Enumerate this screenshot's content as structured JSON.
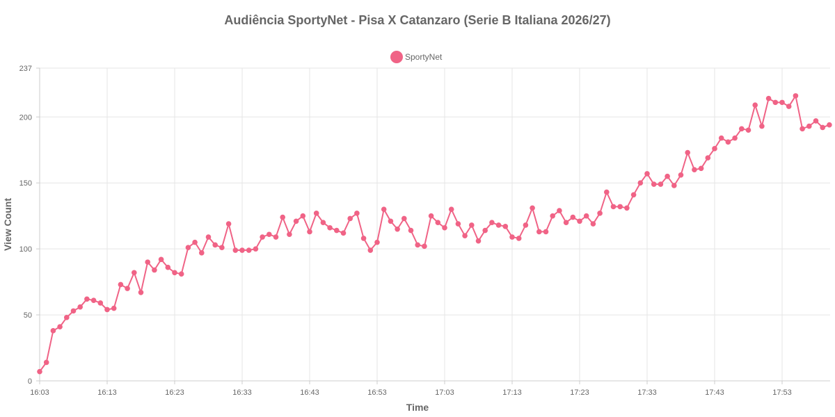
{
  "chart_data": {
    "type": "line",
    "title": "Audiência SportyNet - Pisa X Catanzaro (Serie B Italiana 2026/27)",
    "xlabel": "Time",
    "ylabel": "View Count",
    "ylim": [
      0,
      237
    ],
    "y_ticks": [
      "0",
      "50",
      "100",
      "150",
      "200",
      "237"
    ],
    "y_tick_values": [
      0,
      50,
      100,
      150,
      200,
      237
    ],
    "x_range": [
      "16:03",
      "18:00"
    ],
    "x_ticks": [
      "16:03",
      "16:13",
      "16:23",
      "16:33",
      "16:43",
      "16:53",
      "17:03",
      "17:13",
      "17:23",
      "17:33",
      "17:43",
      "17:53"
    ],
    "grid": true,
    "legend_position": "top",
    "series": [
      {
        "name": "SportyNet",
        "color": "#f06386",
        "x": [
          "16:03",
          "16:04",
          "16:05",
          "16:06",
          "16:07",
          "16:08",
          "16:09",
          "16:10",
          "16:11",
          "16:12",
          "16:13",
          "16:14",
          "16:15",
          "16:16",
          "16:17",
          "16:18",
          "16:19",
          "16:20",
          "16:21",
          "16:22",
          "16:23",
          "16:24",
          "16:25",
          "16:26",
          "16:27",
          "16:28",
          "16:29",
          "16:30",
          "16:31",
          "16:32",
          "16:33",
          "16:34",
          "16:35",
          "16:36",
          "16:37",
          "16:38",
          "16:39",
          "16:40",
          "16:41",
          "16:42",
          "16:43",
          "16:44",
          "16:45",
          "16:46",
          "16:47",
          "16:48",
          "16:49",
          "16:50",
          "16:51",
          "16:52",
          "16:53",
          "16:54",
          "16:55",
          "16:56",
          "16:57",
          "16:58",
          "16:59",
          "17:00",
          "17:01",
          "17:02",
          "17:03",
          "17:04",
          "17:05",
          "17:06",
          "17:07",
          "17:08",
          "17:09",
          "17:10",
          "17:11",
          "17:12",
          "17:13",
          "17:14",
          "17:15",
          "17:16",
          "17:17",
          "17:18",
          "17:19",
          "17:20",
          "17:21",
          "17:22",
          "17:23",
          "17:24",
          "17:25",
          "17:26",
          "17:27",
          "17:28",
          "17:29",
          "17:30",
          "17:31",
          "17:32",
          "17:33",
          "17:34",
          "17:35",
          "17:36",
          "17:37",
          "17:38",
          "17:39",
          "17:40",
          "17:41",
          "17:42",
          "17:43",
          "17:44",
          "17:45",
          "17:46",
          "17:47",
          "17:48",
          "17:49",
          "17:50",
          "17:51",
          "17:52",
          "17:53",
          "17:54",
          "17:55",
          "17:56",
          "17:57",
          "17:58",
          "17:59",
          "18:00"
        ],
        "values": [
          7,
          14,
          38,
          41,
          48,
          53,
          56,
          62,
          61,
          59,
          54,
          55,
          73,
          70,
          82,
          67,
          90,
          84,
          92,
          86,
          82,
          81,
          101,
          105,
          97,
          109,
          103,
          101,
          119,
          99,
          99,
          99,
          100,
          109,
          111,
          109,
          124,
          111,
          121,
          125,
          113,
          127,
          120,
          116,
          114,
          112,
          123,
          127,
          108,
          99,
          105,
          130,
          121,
          115,
          123,
          114,
          103,
          102,
          125,
          120,
          116,
          130,
          119,
          110,
          118,
          106,
          114,
          120,
          118,
          117,
          109,
          108,
          118,
          131,
          113,
          113,
          125,
          129,
          120,
          124,
          121,
          125,
          119,
          127,
          143,
          132,
          132,
          131,
          141,
          150,
          157,
          149,
          149,
          155,
          148,
          156,
          173,
          160,
          161,
          169,
          176,
          184,
          181,
          184,
          191,
          190,
          209,
          193,
          214,
          211,
          211,
          208,
          216,
          191,
          193,
          197,
          192,
          194
        ]
      }
    ]
  }
}
